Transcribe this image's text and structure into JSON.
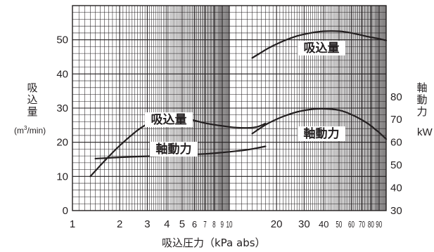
{
  "chart_data": {
    "type": "line",
    "title": "",
    "xlabel": "吸込圧力（kPa abs）",
    "x_scale": "log",
    "xlim": [
      1,
      100
    ],
    "x_ticks": [
      {
        "value": 1,
        "label": "1"
      },
      {
        "value": 2,
        "label": "2"
      },
      {
        "value": 3,
        "label": "3"
      },
      {
        "value": 4,
        "label": "4"
      },
      {
        "value": 5,
        "label": "5"
      },
      {
        "value": 6,
        "label": "6"
      },
      {
        "value": 7,
        "label": "7"
      },
      {
        "value": 8,
        "label": "8"
      },
      {
        "value": 9,
        "label": "9"
      },
      {
        "value": 10,
        "label": "10"
      },
      {
        "value": 20,
        "label": "20"
      },
      {
        "value": 30,
        "label": "30"
      },
      {
        "value": 40,
        "label": "40"
      },
      {
        "value": 50,
        "label": "50"
      },
      {
        "value": 60,
        "label": "60"
      },
      {
        "value": 70,
        "label": "70"
      },
      {
        "value": 80,
        "label": "80"
      },
      {
        "value": 90,
        "label": "90"
      }
    ],
    "y_left": {
      "label": "吸込量",
      "unit_prefix": "(m",
      "unit_sup": "3",
      "unit_suffix": "/min)",
      "lim": [
        0,
        60
      ],
      "ticks": [
        "0",
        "10",
        "20",
        "30",
        "40",
        "50"
      ]
    },
    "y_right": {
      "label": "軸動力",
      "unit": "kW",
      "lim": [
        30,
        120
      ],
      "ticks": [
        "30",
        "40",
        "50",
        "60",
        "70",
        "80"
      ]
    },
    "grid": true,
    "series": [
      {
        "name": "吸込量",
        "axis": "left",
        "x": [
          1.3,
          1.6,
          2.0,
          2.6,
          3.2,
          4.0,
          4.6,
          5.5,
          7.0,
          9.0,
          11.0,
          13.0,
          15.0,
          17.0
        ],
        "y": [
          10,
          14.5,
          19,
          23.5,
          26,
          27.3,
          27.3,
          26.8,
          25.6,
          24.8,
          24.3,
          24.2,
          24.5,
          25.5
        ]
      },
      {
        "name": "軸動力",
        "axis": "left",
        "x": [
          1.4,
          2.0,
          3.0,
          4.0,
          5.0,
          7.0,
          9.0,
          11.0,
          13.0,
          15.0,
          17.0
        ],
        "y": [
          15.2,
          15.6,
          15.9,
          16.1,
          16.3,
          16.6,
          17.0,
          17.4,
          17.8,
          18.3,
          18.8
        ]
      },
      {
        "name": "吸込量",
        "axis": "left",
        "x": [
          14.0,
          16.0,
          18.0,
          22.0,
          27.0,
          33.0,
          40.0,
          50.0,
          60.0,
          75.0,
          90.0,
          100.0
        ],
        "y": [
          44.7,
          46.3,
          47.7,
          49.6,
          51.1,
          52.0,
          52.5,
          52.5,
          52.0,
          51.0,
          50.3,
          49.8
        ]
      },
      {
        "name": "軸動力",
        "axis": "right",
        "x": [
          14.0,
          16.0,
          18.0,
          22.0,
          27.0,
          33.0,
          40.0,
          50.0,
          60.0,
          75.0,
          90.0,
          100.0
        ],
        "y": [
          63.8,
          66.5,
          68.6,
          71.3,
          73.3,
          74.4,
          74.7,
          74.1,
          72.2,
          68.6,
          64.3,
          61.4
        ]
      }
    ],
    "annotations": [
      "吸込量",
      "軸動力",
      "吸込量",
      "軸動力"
    ]
  }
}
